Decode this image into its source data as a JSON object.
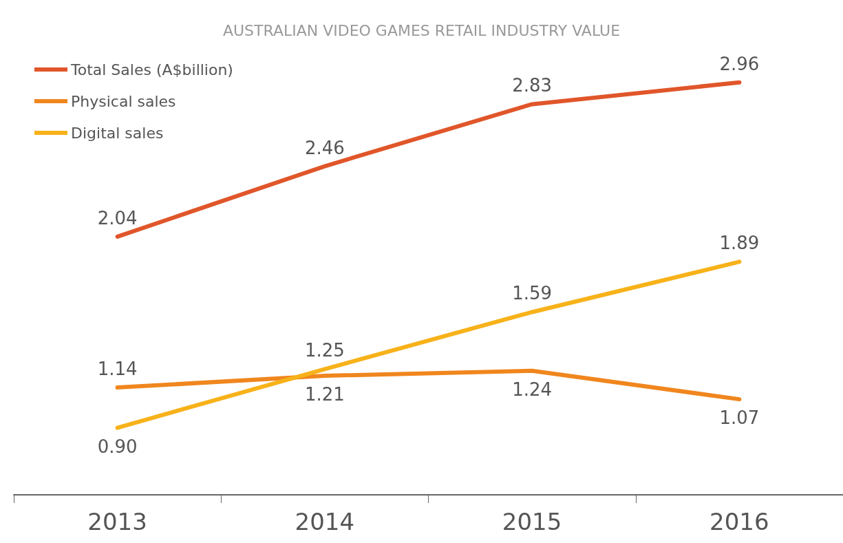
{
  "chart_data": {
    "type": "line",
    "title": "AUSTRALIAN VIDEO GAMES RETAIL INDUSTRY VALUE",
    "categories": [
      "2013",
      "2014",
      "2015",
      "2016"
    ],
    "series": [
      {
        "name": "Total Sales (A$billion)",
        "color": "#e0562a",
        "values": [
          2.04,
          2.46,
          2.83,
          2.96
        ],
        "value_labels": [
          "2.04",
          "2.46",
          "2.83",
          "2.96"
        ]
      },
      {
        "name": "Physical sales",
        "color": "#f0861e",
        "values": [
          1.14,
          1.21,
          1.24,
          1.07
        ],
        "value_labels": [
          "1.14",
          "1.21",
          "1.24",
          "1.07"
        ]
      },
      {
        "name": "Digital sales",
        "color": "#f7b21a",
        "values": [
          0.9,
          1.25,
          1.59,
          1.89
        ],
        "value_labels": [
          "0.90",
          "1.25",
          "1.59",
          "1.89"
        ]
      }
    ],
    "legend": "top left",
    "grid": false,
    "marker": "none",
    "line_style": "solid"
  }
}
